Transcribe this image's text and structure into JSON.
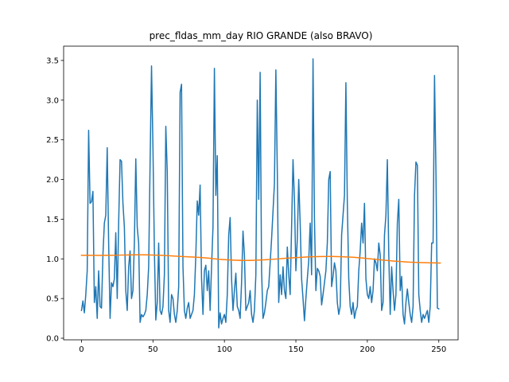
{
  "chart_data": {
    "type": "line",
    "title": "prec_fldas_mm_day RIO GRANDE (also BRAVO)",
    "xlabel": "",
    "ylabel": "",
    "xlim": [
      -12.5,
      263.5
    ],
    "ylim": [
      -0.02,
      3.68
    ],
    "x_ticks": [
      0,
      50,
      100,
      150,
      200,
      250
    ],
    "y_ticks": [
      0.0,
      0.5,
      1.0,
      1.5,
      2.0,
      2.5,
      3.0,
      3.5
    ],
    "grid": false,
    "legend": "none",
    "series": [
      {
        "color": "#1f77b4",
        "values": [
          0.35,
          0.47,
          0.32,
          0.55,
          0.85,
          2.62,
          1.7,
          1.72,
          1.85,
          0.45,
          0.65,
          0.25,
          0.85,
          0.4,
          0.38,
          1.05,
          1.45,
          1.55,
          2.4,
          1.2,
          0.25,
          0.7,
          0.65,
          0.75,
          1.33,
          0.5,
          1.45,
          2.25,
          2.23,
          1.7,
          1.4,
          0.6,
          0.35,
          0.9,
          1.1,
          0.5,
          0.6,
          1.2,
          2.26,
          1.4,
          1.2,
          0.2,
          0.3,
          0.27,
          0.3,
          0.35,
          0.55,
          0.9,
          2.2,
          3.43,
          2.4,
          1.1,
          0.23,
          0.45,
          1.2,
          0.35,
          0.3,
          0.4,
          0.8,
          2.67,
          2.1,
          0.35,
          0.2,
          0.55,
          0.5,
          0.3,
          0.2,
          0.35,
          0.65,
          3.1,
          3.2,
          0.9,
          0.35,
          0.25,
          0.38,
          0.45,
          0.25,
          0.3,
          0.35,
          0.55,
          1.05,
          1.73,
          1.55,
          1.93,
          0.75,
          0.3,
          0.85,
          0.92,
          0.6,
          0.85,
          0.35,
          0.9,
          1.4,
          3.4,
          1.8,
          2.3,
          0.13,
          0.32,
          0.18,
          0.25,
          0.3,
          0.2,
          0.55,
          1.3,
          1.52,
          0.75,
          0.35,
          0.6,
          0.82,
          0.4,
          0.35,
          0.25,
          0.7,
          1.35,
          1.05,
          0.35,
          0.4,
          0.45,
          0.6,
          0.3,
          0.2,
          0.35,
          0.8,
          3.0,
          1.75,
          3.35,
          0.85,
          0.25,
          0.32,
          0.45,
          0.6,
          0.65,
          0.95,
          1.25,
          1.6,
          1.95,
          3.38,
          2.1,
          0.45,
          0.8,
          0.55,
          0.9,
          0.6,
          0.5,
          1.15,
          0.8,
          0.55,
          1.4,
          2.25,
          1.75,
          0.85,
          1.25,
          2.0,
          1.45,
          0.75,
          0.5,
          0.22,
          0.5,
          0.75,
          0.98,
          1.45,
          0.8,
          3.52,
          1.5,
          0.6,
          0.88,
          0.85,
          0.78,
          0.42,
          0.55,
          0.7,
          0.85,
          1.2,
          2.0,
          2.1,
          0.65,
          0.78,
          0.95,
          0.85,
          0.45,
          0.3,
          0.4,
          1.3,
          1.55,
          1.8,
          3.22,
          1.7,
          0.75,
          0.4,
          0.3,
          0.45,
          0.25,
          0.35,
          0.4,
          0.85,
          1.1,
          1.45,
          1.2,
          1.7,
          0.75,
          0.55,
          0.5,
          0.65,
          0.45,
          0.6,
          1.0,
          0.95,
          0.85,
          1.2,
          1.05,
          0.35,
          0.45,
          1.3,
          1.55,
          2.25,
          1.05,
          0.3,
          0.9,
          0.6,
          0.35,
          0.55,
          1.45,
          1.75,
          0.6,
          0.78,
          0.3,
          0.18,
          0.45,
          0.62,
          0.45,
          0.3,
          0.2,
          0.4,
          1.8,
          2.22,
          2.18,
          0.55,
          0.35,
          0.2,
          0.3,
          0.25,
          0.3,
          0.35,
          0.2,
          0.4,
          1.2,
          1.2,
          3.31,
          2.1,
          0.38,
          0.37
        ]
      },
      {
        "color": "#ff7f0e",
        "trend": [
          [
            0,
            1.045
          ],
          [
            20,
            1.045
          ],
          [
            40,
            1.052
          ],
          [
            55,
            1.045
          ],
          [
            70,
            1.03
          ],
          [
            85,
            1.015
          ],
          [
            100,
            0.99
          ],
          [
            115,
            0.98
          ],
          [
            130,
            0.99
          ],
          [
            145,
            1.01
          ],
          [
            160,
            1.025
          ],
          [
            175,
            1.03
          ],
          [
            190,
            1.02
          ],
          [
            205,
            0.995
          ],
          [
            220,
            0.97
          ],
          [
            235,
            0.955
          ],
          [
            251,
            0.948
          ]
        ]
      }
    ]
  }
}
